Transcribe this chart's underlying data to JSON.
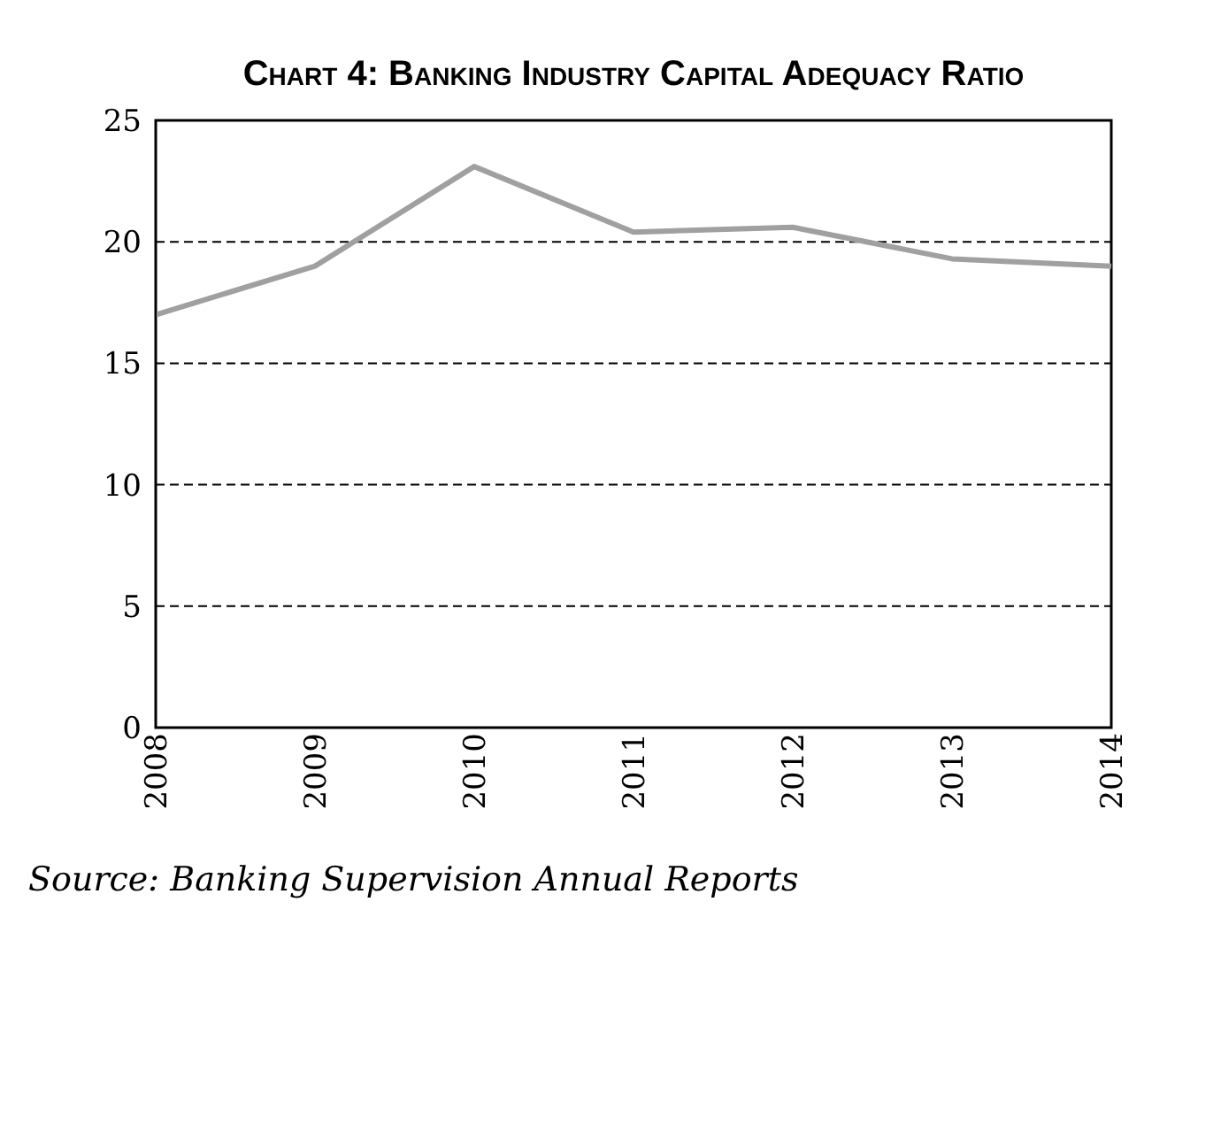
{
  "chart_data": {
    "type": "line",
    "title": "Chart 4: Banking Industry Capital Adequacy Ratio",
    "categories": [
      "2008",
      "2009",
      "2010",
      "2011",
      "2012",
      "2013",
      "2014"
    ],
    "series": [
      {
        "color": "#a0a0a0",
        "values": [
          17,
          19,
          23.1,
          20.4,
          20.6,
          19.3,
          19.0
        ]
      }
    ],
    "ylim": [
      0,
      25
    ],
    "yticks": [
      0,
      5,
      10,
      15,
      20,
      25
    ],
    "grid": "y",
    "legend": false,
    "marker": "none",
    "line_style": "solid",
    "annotations": [
      "Source: Banking Supervision Annual Reports"
    ]
  }
}
